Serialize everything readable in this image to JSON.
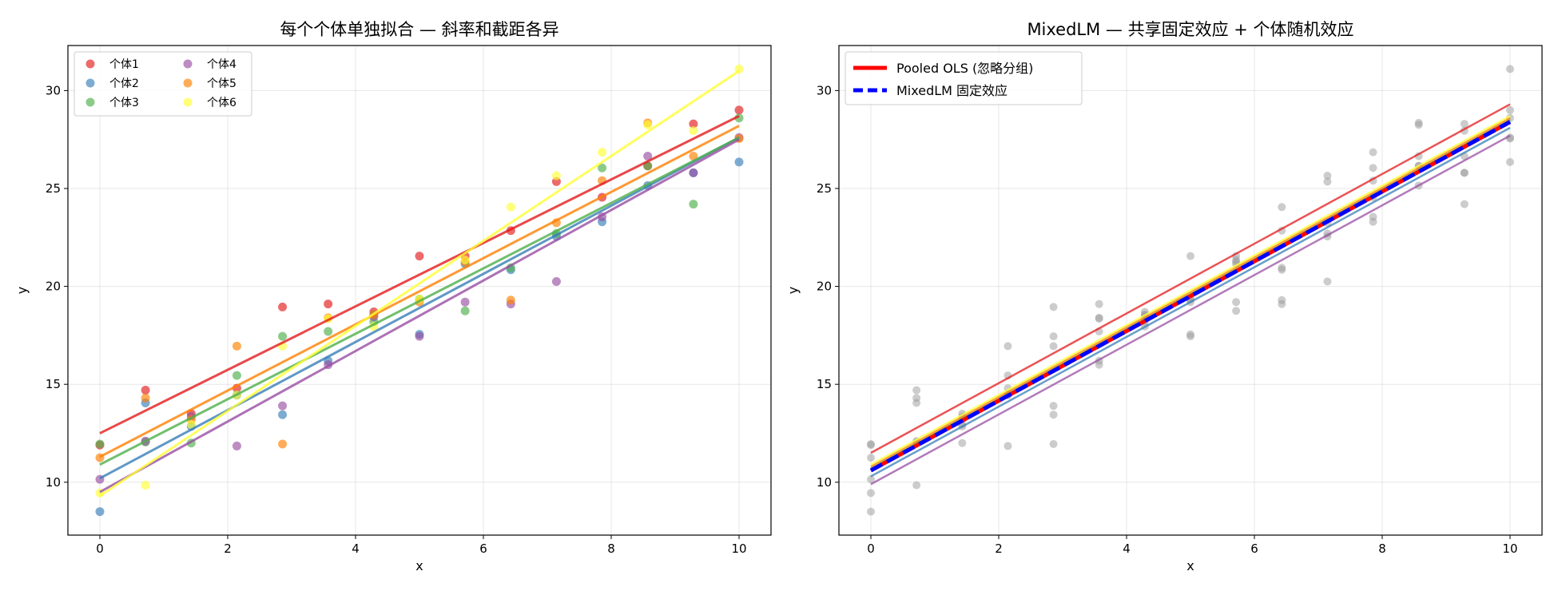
{
  "chart_data": [
    {
      "type": "scatter",
      "title": "每个个体单独拟合 — 斜率和截距各异",
      "xlabel": "x",
      "ylabel": "y",
      "xlim": [
        -0.5,
        10.5
      ],
      "ylim": [
        7.3,
        32.3
      ],
      "xticks": [
        0,
        2,
        4,
        6,
        8,
        10
      ],
      "yticks": [
        10,
        15,
        20,
        25,
        30
      ],
      "grid": true,
      "legend_position": "top-left",
      "legend_columns": 2,
      "x": [
        0,
        0.714,
        1.429,
        2.143,
        2.857,
        3.571,
        4.286,
        5.0,
        5.714,
        6.429,
        7.143,
        7.857,
        8.571,
        9.286,
        10.0
      ],
      "series": [
        {
          "name": "个体1",
          "color": "#e41a1c",
          "values": [
            11.9,
            14.7,
            13.5,
            14.8,
            18.95,
            19.1,
            18.7,
            21.55,
            21.55,
            22.85,
            25.35,
            24.55,
            26.15,
            28.3,
            29.0
          ],
          "fit": {
            "intercept": 12.5,
            "slope": 1.62
          }
        },
        {
          "name": "个体2",
          "color": "#377eb8",
          "values": [
            8.5,
            14.05,
            12.85,
            14.45,
            13.45,
            16.2,
            18.55,
            17.55,
            21.15,
            20.85,
            22.55,
            23.3,
            25.15,
            25.8,
            26.35
          ],
          "fit": {
            "intercept": 10.2,
            "slope": 1.74
          }
        },
        {
          "name": "个体3",
          "color": "#4daf4a",
          "values": [
            11.95,
            12.05,
            12.0,
            15.45,
            17.45,
            17.7,
            18.2,
            19.35,
            18.75,
            20.95,
            22.7,
            26.05,
            26.15,
            24.2,
            28.6
          ],
          "fit": {
            "intercept": 10.9,
            "slope": 1.67
          }
        },
        {
          "name": "个体4",
          "color": "#984ea3",
          "values": [
            10.15,
            12.1,
            13.35,
            11.85,
            13.9,
            16.0,
            18.45,
            17.45,
            19.2,
            19.1,
            20.25,
            23.55,
            26.65,
            25.8,
            27.6
          ],
          "fit": {
            "intercept": 9.5,
            "slope": 1.8
          }
        },
        {
          "name": "个体5",
          "color": "#ff7f00",
          "values": [
            11.25,
            14.3,
            13.2,
            16.95,
            11.95,
            18.4,
            18.55,
            19.2,
            21.25,
            19.3,
            23.25,
            25.4,
            28.35,
            26.65,
            27.55
          ],
          "fit": {
            "intercept": 11.3,
            "slope": 1.69
          }
        },
        {
          "name": "个体6",
          "color": "#ffff33",
          "values": [
            9.45,
            9.85,
            12.95,
            14.45,
            16.95,
            18.35,
            17.95,
            19.35,
            21.35,
            24.05,
            25.65,
            26.85,
            28.25,
            27.95,
            31.1
          ],
          "fit": {
            "intercept": 9.3,
            "slope": 2.17
          }
        }
      ]
    },
    {
      "type": "scatter",
      "title": "MixedLM — 共享固定效应 + 个体随机效应",
      "xlabel": "x",
      "ylabel": "y",
      "xlim": [
        -0.5,
        10.5
      ],
      "ylim": [
        7.3,
        32.3
      ],
      "xticks": [
        0,
        2,
        4,
        6,
        8,
        10
      ],
      "yticks": [
        10,
        15,
        20,
        25,
        30
      ],
      "grid": true,
      "legend_position": "top-left",
      "pooled_points_from": "chart_data.0.series",
      "pooled_point_color": "#9a9a9a",
      "group_lines": [
        {
          "color": "#e41a1c",
          "intercept": 11.5,
          "slope": 1.78
        },
        {
          "color": "#377eb8",
          "intercept": 10.3,
          "slope": 1.78
        },
        {
          "color": "#4daf4a",
          "intercept": 10.7,
          "slope": 1.78
        },
        {
          "color": "#984ea3",
          "intercept": 9.9,
          "slope": 1.78
        },
        {
          "color": "#ff7f00",
          "intercept": 10.8,
          "slope": 1.78
        },
        {
          "color": "#ffff33",
          "intercept": 10.9,
          "slope": 1.78
        }
      ],
      "fixed_lines": [
        {
          "name": "Pooled OLS (忽略分组)",
          "color": "#ff0000",
          "style": "solid",
          "intercept": 10.6,
          "slope": 1.78
        },
        {
          "name": "MixedLM 固定效应",
          "color": "#0000ff",
          "style": "dashed",
          "intercept": 10.6,
          "slope": 1.78
        }
      ]
    }
  ]
}
